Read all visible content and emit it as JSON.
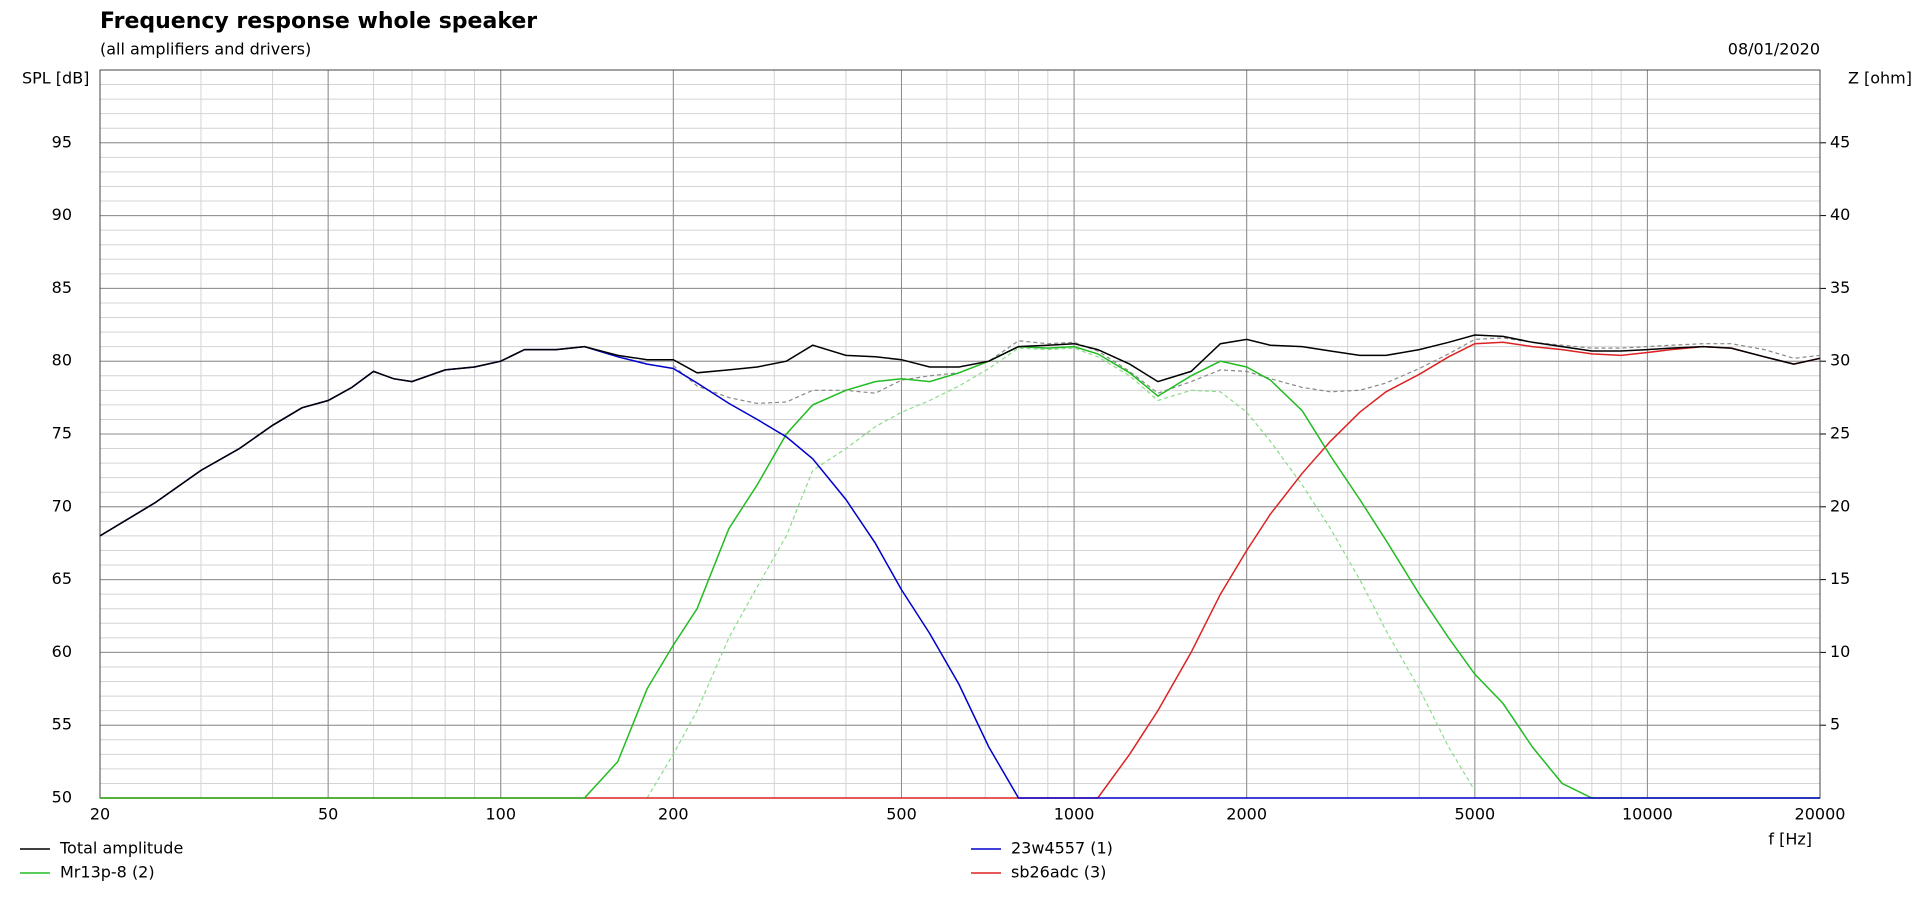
{
  "chart_data": {
    "type": "line",
    "title": "Frequency response whole speaker",
    "subtitle": "(all amplifiers and drivers)",
    "date": "08/01/2020",
    "y_label": "SPL [dB]",
    "y2_label": "Z [ohm]",
    "x_label": "f [Hz]",
    "x_log": true,
    "grid": true,
    "minor_grid": true,
    "xlim": [
      20,
      20000
    ],
    "xticks": [
      20,
      50,
      100,
      200,
      500,
      1000,
      2000,
      5000,
      10000,
      20000
    ],
    "ylim": [
      50,
      100
    ],
    "yticks": [
      50,
      55,
      60,
      65,
      70,
      75,
      80,
      85,
      90,
      95
    ],
    "y2lim": [
      0,
      50
    ],
    "y2ticks": [
      5,
      10,
      15,
      20,
      25,
      30,
      35,
      40,
      45
    ],
    "x": [
      20,
      25,
      30,
      35,
      40,
      45,
      50,
      55,
      60,
      65,
      70,
      80,
      90,
      100,
      110,
      125,
      140,
      160,
      180,
      200,
      220,
      250,
      280,
      315,
      350,
      400,
      450,
      500,
      560,
      630,
      710,
      800,
      900,
      1000,
      1100,
      1250,
      1400,
      1600,
      1800,
      2000,
      2200,
      2500,
      2800,
      3150,
      3500,
      4000,
      4500,
      5000,
      5600,
      6300,
      7100,
      8000,
      9000,
      10000,
      11000,
      12500,
      14000,
      16000,
      18000,
      20000
    ],
    "series": [
      {
        "name": "Total amplitude",
        "color": "#000000",
        "dashed": false,
        "values": [
          68,
          70.3,
          72.5,
          74,
          75.6,
          76.8,
          77.3,
          78.2,
          79.3,
          78.8,
          78.6,
          79.4,
          79.6,
          80,
          80.8,
          80.8,
          81,
          80.4,
          80.1,
          80.1,
          79.2,
          79.4,
          79.6,
          80,
          81.1,
          80.4,
          80.3,
          80.1,
          79.6,
          79.6,
          80,
          81,
          81.1,
          81.2,
          80.8,
          79.8,
          78.6,
          79.3,
          81.2,
          81.5,
          81.1,
          81,
          80.7,
          80.4,
          80.4,
          80.8,
          81.3,
          81.8,
          81.7,
          81.3,
          81,
          80.7,
          80.7,
          80.8,
          80.9,
          81,
          80.9,
          80.3,
          79.8,
          80.2
        ]
      },
      {
        "name": "23w4557 (1)",
        "color": "#0000cc",
        "dashed": false,
        "values": [
          68,
          70.3,
          72.5,
          74,
          75.6,
          76.8,
          77.3,
          78.2,
          79.3,
          78.8,
          78.6,
          79.4,
          79.6,
          80,
          80.8,
          80.8,
          81,
          80.3,
          79.8,
          79.5,
          78.5,
          77.1,
          76,
          74.8,
          73.3,
          70.5,
          67.5,
          64.3,
          61.3,
          57.8,
          53.5,
          50,
          50,
          50,
          50,
          50,
          50,
          50,
          50,
          50,
          50,
          50,
          50,
          50,
          50,
          50,
          50,
          50,
          50,
          50,
          50,
          50,
          50,
          50,
          50,
          50,
          50,
          50,
          50,
          50
        ]
      },
      {
        "name": "Mr13p-8 (2)",
        "color": "#22bb22",
        "dashed": false,
        "values": [
          50,
          50,
          50,
          50,
          50,
          50,
          50,
          50,
          50,
          50,
          50,
          50,
          50,
          50,
          50,
          50,
          50,
          52.5,
          57.5,
          60.5,
          63,
          68.5,
          71.5,
          75,
          77,
          78,
          78.6,
          78.8,
          78.6,
          79.2,
          80,
          81,
          80.9,
          81,
          80.5,
          79.2,
          77.6,
          79,
          80,
          79.6,
          78.7,
          76.6,
          73.5,
          70.5,
          67.7,
          64,
          61,
          58.5,
          56.5,
          53.5,
          51,
          50,
          50,
          50,
          50,
          50,
          50,
          50,
          50,
          50
        ]
      },
      {
        "name": "sb26adc (3)",
        "color": "#dd2222",
        "dashed": false,
        "values": [
          50,
          50,
          50,
          50,
          50,
          50,
          50,
          50,
          50,
          50,
          50,
          50,
          50,
          50,
          50,
          50,
          50,
          50,
          50,
          50,
          50,
          50,
          50,
          50,
          50,
          50,
          50,
          50,
          50,
          50,
          50,
          50,
          50,
          50,
          50,
          53,
          56,
          60,
          64,
          67,
          69.5,
          72.3,
          74.5,
          76.5,
          77.9,
          79.1,
          80.3,
          81.2,
          81.3,
          81,
          80.8,
          80.5,
          80.4,
          80.6,
          80.8,
          81,
          80.9,
          80.3,
          79.8,
          80.2
        ]
      },
      {
        "color": "#888888",
        "dashed": true,
        "values": [
          null,
          null,
          null,
          null,
          null,
          null,
          null,
          null,
          null,
          null,
          null,
          null,
          null,
          null,
          null,
          null,
          null,
          null,
          null,
          79.7,
          78.3,
          77.5,
          77.1,
          77.2,
          78,
          78,
          77.8,
          78.7,
          79,
          79.2,
          80,
          81.4,
          81.2,
          81.3,
          80.7,
          79.3,
          77.8,
          78.6,
          79.4,
          79.3,
          78.8,
          78.2,
          77.9,
          78,
          78.5,
          79.5,
          80.5,
          81.5,
          81.6,
          81.3,
          81.1,
          80.9,
          80.9,
          81,
          81.1,
          81.2,
          81.2,
          80.8,
          80.2,
          80.4
        ]
      },
      {
        "color": "#88dd88",
        "dashed": true,
        "values": [
          null,
          null,
          null,
          null,
          null,
          null,
          null,
          null,
          null,
          null,
          null,
          null,
          null,
          null,
          null,
          null,
          null,
          null,
          50,
          53,
          56,
          61,
          64.5,
          68,
          72.5,
          74,
          75.5,
          76.5,
          77.3,
          78.3,
          79.5,
          80.9,
          80.8,
          80.9,
          80.3,
          79,
          77.3,
          78,
          77.9,
          76.5,
          74.5,
          71.5,
          68.5,
          65,
          61.5,
          57.5,
          53.5,
          50.5,
          null,
          null,
          null,
          null,
          null,
          null,
          null,
          null,
          null,
          null,
          null,
          null
        ]
      }
    ]
  }
}
